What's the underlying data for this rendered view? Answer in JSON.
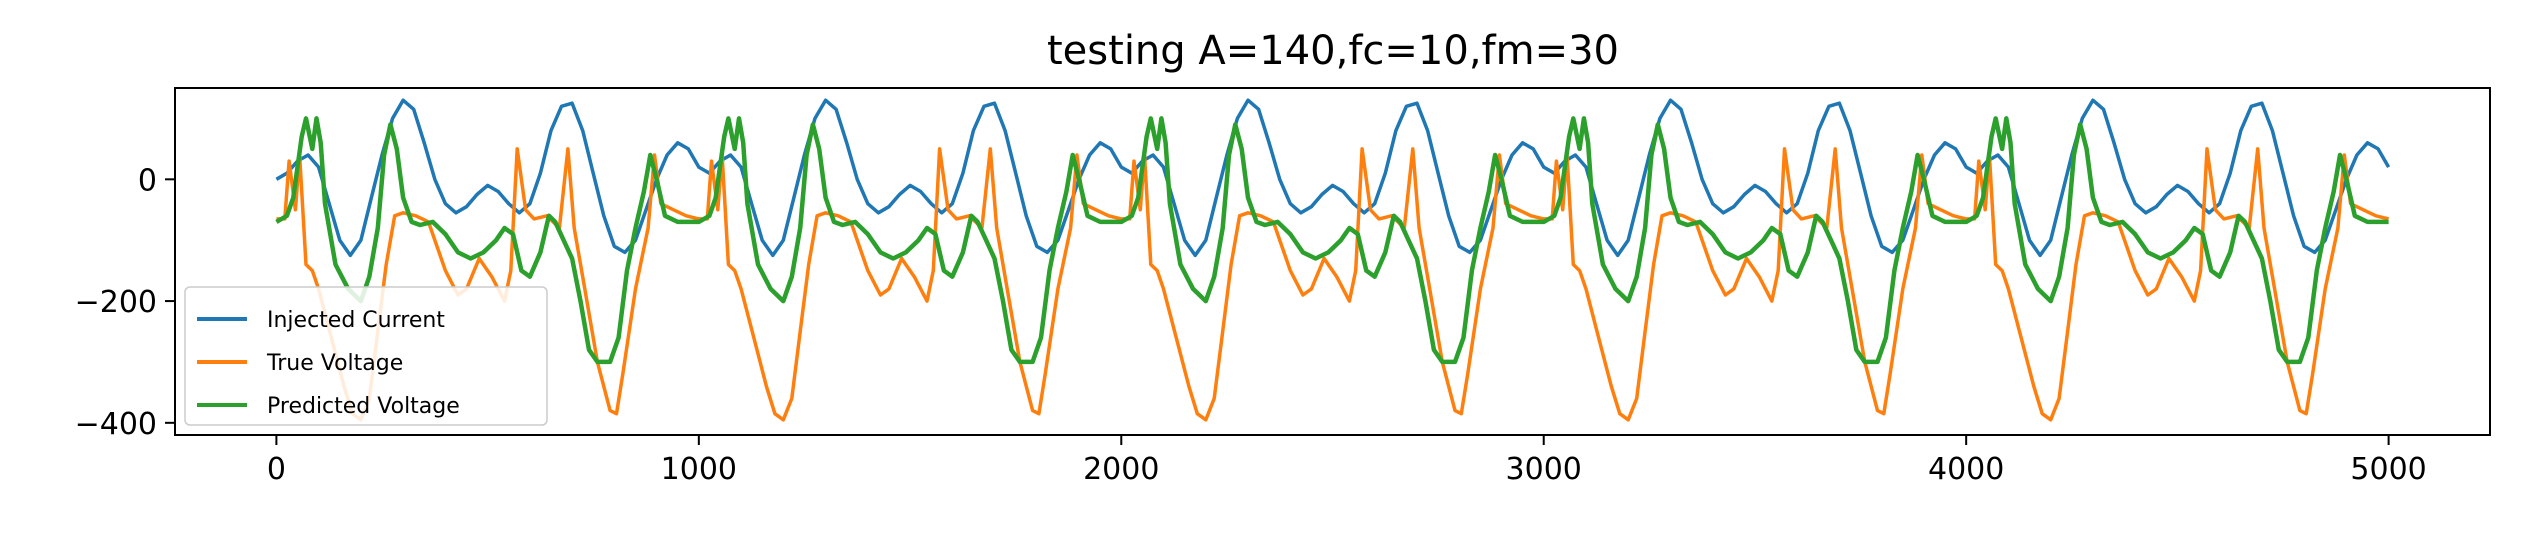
{
  "chart_data": {
    "type": "line",
    "title": "testing A=140,fc=10,fm=30",
    "xlabel": "",
    "ylabel": "",
    "xlim": [
      -240,
      5240
    ],
    "ylim": [
      -420,
      150
    ],
    "x_ticks": [
      0,
      1000,
      2000,
      3000,
      4000,
      5000
    ],
    "x_tick_labels": [
      "0",
      "1000",
      "2000",
      "3000",
      "4000",
      "5000"
    ],
    "y_ticks": [
      0,
      -200,
      -400
    ],
    "y_tick_labels": [
      "0",
      "−200",
      "−400"
    ],
    "grid": false,
    "legend_position": "lower-left",
    "x_range": [
      0,
      5000
    ],
    "cycle_starts": [
      0,
      1000,
      2000,
      3000,
      4000
    ],
    "series": [
      {
        "name": "Injected Current",
        "color": "#1f77b4",
        "cycle": [
          [
            0,
            0
          ],
          [
            25,
            10
          ],
          [
            50,
            30
          ],
          [
            75,
            40
          ],
          [
            100,
            20
          ],
          [
            125,
            -40
          ],
          [
            150,
            -100
          ],
          [
            175,
            -125
          ],
          [
            200,
            -100
          ],
          [
            225,
            -30
          ],
          [
            250,
            40
          ],
          [
            275,
            100
          ],
          [
            300,
            130
          ],
          [
            325,
            115
          ],
          [
            350,
            60
          ],
          [
            375,
            0
          ],
          [
            400,
            -40
          ],
          [
            425,
            -55
          ],
          [
            450,
            -45
          ],
          [
            475,
            -25
          ],
          [
            500,
            -10
          ],
          [
            525,
            -20
          ],
          [
            550,
            -40
          ],
          [
            575,
            -55
          ],
          [
            600,
            -40
          ],
          [
            625,
            10
          ],
          [
            650,
            80
          ],
          [
            675,
            120
          ],
          [
            700,
            125
          ],
          [
            725,
            80
          ],
          [
            750,
            10
          ],
          [
            775,
            -60
          ],
          [
            800,
            -110
          ],
          [
            825,
            -120
          ],
          [
            850,
            -100
          ],
          [
            875,
            -50
          ],
          [
            900,
            0
          ],
          [
            925,
            40
          ],
          [
            950,
            60
          ],
          [
            975,
            50
          ],
          [
            1000,
            20
          ]
        ]
      },
      {
        "name": "True Voltage",
        "color": "#ff7f0e",
        "cycle": [
          [
            0,
            -65
          ],
          [
            20,
            -65
          ],
          [
            30,
            30
          ],
          [
            45,
            -50
          ],
          [
            55,
            40
          ],
          [
            70,
            -140
          ],
          [
            85,
            -150
          ],
          [
            100,
            -180
          ],
          [
            130,
            -260
          ],
          [
            160,
            -340
          ],
          [
            180,
            -385
          ],
          [
            200,
            -395
          ],
          [
            220,
            -360
          ],
          [
            240,
            -250
          ],
          [
            260,
            -140
          ],
          [
            280,
            -60
          ],
          [
            300,
            -55
          ],
          [
            330,
            -60
          ],
          [
            360,
            -70
          ],
          [
            400,
            -150
          ],
          [
            430,
            -190
          ],
          [
            450,
            -180
          ],
          [
            480,
            -130
          ],
          [
            510,
            -160
          ],
          [
            540,
            -200
          ],
          [
            555,
            -150
          ],
          [
            570,
            50
          ],
          [
            590,
            -50
          ],
          [
            610,
            -65
          ],
          [
            640,
            -60
          ],
          [
            670,
            -80
          ],
          [
            690,
            50
          ],
          [
            705,
            -80
          ],
          [
            730,
            -180
          ],
          [
            760,
            -300
          ],
          [
            790,
            -380
          ],
          [
            805,
            -385
          ],
          [
            820,
            -320
          ],
          [
            850,
            -180
          ],
          [
            880,
            -80
          ],
          [
            895,
            40
          ],
          [
            910,
            -40
          ],
          [
            940,
            -50
          ],
          [
            970,
            -60
          ],
          [
            1000,
            -65
          ]
        ]
      },
      {
        "name": "Predicted Voltage",
        "color": "#2ca02c",
        "cycle": [
          [
            0,
            -70
          ],
          [
            25,
            -60
          ],
          [
            40,
            -30
          ],
          [
            60,
            70
          ],
          [
            70,
            100
          ],
          [
            85,
            50
          ],
          [
            95,
            100
          ],
          [
            105,
            60
          ],
          [
            115,
            -40
          ],
          [
            140,
            -140
          ],
          [
            170,
            -180
          ],
          [
            200,
            -200
          ],
          [
            220,
            -160
          ],
          [
            240,
            -80
          ],
          [
            255,
            40
          ],
          [
            270,
            90
          ],
          [
            285,
            50
          ],
          [
            300,
            -30
          ],
          [
            320,
            -70
          ],
          [
            340,
            -75
          ],
          [
            370,
            -70
          ],
          [
            400,
            -90
          ],
          [
            430,
            -120
          ],
          [
            460,
            -130
          ],
          [
            490,
            -120
          ],
          [
            520,
            -100
          ],
          [
            540,
            -80
          ],
          [
            560,
            -90
          ],
          [
            580,
            -150
          ],
          [
            600,
            -160
          ],
          [
            625,
            -120
          ],
          [
            645,
            -60
          ],
          [
            660,
            -70
          ],
          [
            680,
            -100
          ],
          [
            700,
            -130
          ],
          [
            720,
            -200
          ],
          [
            740,
            -280
          ],
          [
            760,
            -300
          ],
          [
            790,
            -300
          ],
          [
            810,
            -260
          ],
          [
            830,
            -150
          ],
          [
            850,
            -80
          ],
          [
            870,
            -20
          ],
          [
            885,
            40
          ],
          [
            900,
            0
          ],
          [
            920,
            -60
          ],
          [
            950,
            -70
          ],
          [
            975,
            -70
          ],
          [
            1000,
            -70
          ]
        ]
      }
    ]
  }
}
